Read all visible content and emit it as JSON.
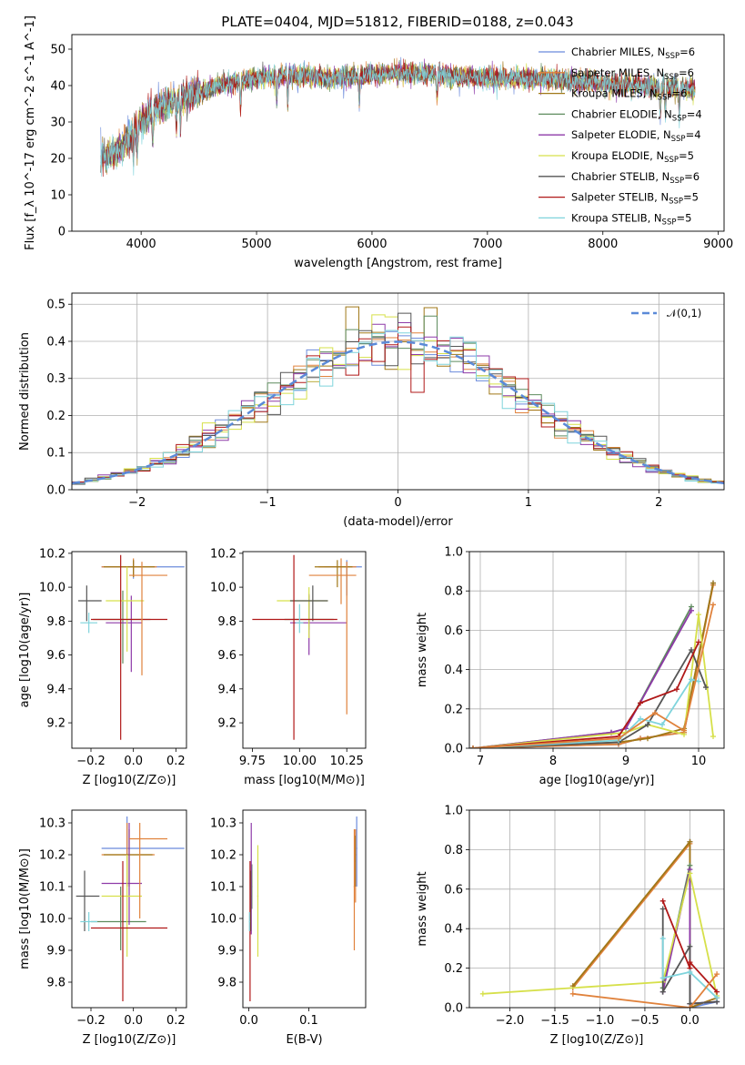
{
  "figure_title": "PLATE=0404, MJD=51812, FIBERID=0188, z=0.043",
  "series": [
    {
      "name": "Chabrier MILES, N_SSP=6",
      "color": "#6b8bdc"
    },
    {
      "name": "Salpeter MILES, N_SSP=6",
      "color": "#e0823c"
    },
    {
      "name": "Kroupa MILES, N_SSP=6",
      "color": "#a07818"
    },
    {
      "name": "Chabrier ELODIE, N_SSP=4",
      "color": "#5e8c5e"
    },
    {
      "name": "Salpeter ELODIE, N_SSP=4",
      "color": "#8e3aa8"
    },
    {
      "name": "Kroupa ELODIE, N_SSP=5",
      "color": "#d6e04a"
    },
    {
      "name": "Chabrier STELIB, N_SSP=6",
      "color": "#555555"
    },
    {
      "name": "Salpeter STELIB, N_SSP=5",
      "color": "#b01818"
    },
    {
      "name": "Kroupa STELIB, N_SSP=5",
      "color": "#7fd4dc"
    }
  ],
  "chart_data": [
    {
      "id": "spectrum",
      "type": "line",
      "title": "PLATE=0404, MJD=51812, FIBERID=0188, z=0.043",
      "xlabel": "wavelength [Angstrom, rest frame]",
      "ylabel": "Flux [f_λ 10^-17 erg cm^-2 s^-1 A^-1]",
      "xlim": [
        3400,
        9050
      ],
      "ylim": [
        0,
        54
      ],
      "xticks": [
        4000,
        5000,
        6000,
        7000,
        8000,
        9000
      ],
      "yticks": [
        0,
        10,
        20,
        30,
        40,
        50
      ],
      "continuum": {
        "x": [
          3650,
          3800,
          4000,
          4200,
          4500,
          4800,
          5000,
          5300,
          5600,
          6000,
          6300,
          6600,
          7000,
          7500,
          8000,
          8500,
          8800
        ],
        "y": [
          20,
          22,
          30,
          35,
          38,
          41,
          42,
          43,
          42,
          43,
          43.5,
          43,
          42,
          42,
          40.5,
          39.5,
          39
        ]
      },
      "legend_loc": "upper right"
    },
    {
      "id": "residuals",
      "type": "step",
      "xlabel": "(data-model)/error",
      "ylabel": "Normed distribution",
      "xlim": [
        -2.5,
        2.5
      ],
      "ylim": [
        0,
        0.53
      ],
      "xticks": [
        -2,
        -1,
        0,
        1,
        2
      ],
      "yticks": [
        0.0,
        0.1,
        0.2,
        0.3,
        0.4,
        0.5
      ],
      "reference": {
        "name": "𝒩(0,1)",
        "mu": 0,
        "sigma": 1,
        "color": "#5b8ad8"
      },
      "bin_width": 0.1,
      "grid": true
    },
    {
      "id": "age_vs_Z",
      "type": "errorbar",
      "xlabel": "Z [log10(Z/Z⊙)]",
      "ylabel": "age [log10(age/yr)]",
      "xlim": [
        -0.29,
        0.25
      ],
      "ylim": [
        9.05,
        10.21
      ],
      "xticks": [
        -0.2,
        0.0,
        0.2
      ],
      "yticks": [
        9.2,
        9.4,
        9.6,
        9.8,
        10.0,
        10.2
      ],
      "points": [
        {
          "series": 0,
          "x": 0.0,
          "y": 10.12,
          "xlo": -0.15,
          "xhi": 0.24,
          "ylo": 10.05,
          "yhi": 10.16
        },
        {
          "series": 1,
          "x": 0.0,
          "y": 10.12,
          "xlo": -0.15,
          "xhi": 0.11,
          "ylo": 10.06,
          "yhi": 10.17
        },
        {
          "series": 2,
          "x": 0.0,
          "y": 10.12,
          "xlo": -0.14,
          "xhi": 0.1,
          "ylo": 10.06,
          "yhi": 10.16
        },
        {
          "series": 3,
          "x": -0.05,
          "y": 9.81,
          "xlo": -0.19,
          "xhi": 0.08,
          "ylo": 9.55,
          "yhi": 9.98
        },
        {
          "series": 4,
          "x": -0.01,
          "y": 9.79,
          "xlo": -0.13,
          "xhi": 0.04,
          "ylo": 9.5,
          "yhi": 9.95
        },
        {
          "series": 5,
          "x": -0.03,
          "y": 9.92,
          "xlo": -0.13,
          "xhi": 0.05,
          "ylo": 9.62,
          "yhi": 10.12
        },
        {
          "series": 6,
          "x": -0.22,
          "y": 9.92,
          "xlo": -0.26,
          "xhi": -0.15,
          "ylo": 9.8,
          "yhi": 10.01
        },
        {
          "series": 7,
          "x": -0.06,
          "y": 9.81,
          "xlo": -0.2,
          "xhi": 0.16,
          "ylo": 9.1,
          "yhi": 10.19
        },
        {
          "series": 8,
          "x": -0.21,
          "y": 9.79,
          "xlo": -0.25,
          "xhi": -0.17,
          "ylo": 9.73,
          "yhi": 9.85
        },
        {
          "series": 1,
          "x": 0.04,
          "y": 10.07,
          "xlo": -0.02,
          "xhi": 0.16,
          "ylo": 9.48,
          "yhi": 10.15
        }
      ]
    },
    {
      "id": "age_vs_mass",
      "type": "errorbar",
      "xlabel": "mass [log10(M/M⊙)]",
      "ylabel": "",
      "xlim": [
        9.7,
        10.35
      ],
      "ylim": [
        9.05,
        10.21
      ],
      "xticks": [
        9.75,
        10.0,
        10.25
      ],
      "yticks": [
        9.2,
        9.4,
        9.6,
        9.8,
        10.0,
        10.2
      ],
      "points": [
        {
          "series": 0,
          "x": 10.25,
          "y": 10.12,
          "xlo": 10.13,
          "xhi": 10.33,
          "ylo": 9.95,
          "yhi": 10.16
        },
        {
          "series": 1,
          "x": 10.22,
          "y": 10.12,
          "xlo": 10.1,
          "xhi": 10.3,
          "ylo": 9.9,
          "yhi": 10.17
        },
        {
          "series": 2,
          "x": 10.2,
          "y": 10.12,
          "xlo": 10.08,
          "xhi": 10.28,
          "ylo": 10.0,
          "yhi": 10.16
        },
        {
          "series": 3,
          "x": 10.05,
          "y": 9.81,
          "xlo": 9.92,
          "xhi": 10.18,
          "ylo": 9.75,
          "yhi": 9.95
        },
        {
          "series": 4,
          "x": 10.05,
          "y": 9.79,
          "xlo": 9.95,
          "xhi": 10.25,
          "ylo": 9.6,
          "yhi": 9.96
        },
        {
          "series": 5,
          "x": 10.05,
          "y": 9.92,
          "xlo": 9.88,
          "xhi": 10.15,
          "ylo": 9.7,
          "yhi": 10.0
        },
        {
          "series": 6,
          "x": 10.07,
          "y": 9.92,
          "xlo": 9.95,
          "xhi": 10.15,
          "ylo": 9.8,
          "yhi": 10.01
        },
        {
          "series": 7,
          "x": 9.97,
          "y": 9.81,
          "xlo": 9.75,
          "xhi": 10.2,
          "ylo": 9.1,
          "yhi": 10.19
        },
        {
          "series": 8,
          "x": 10.0,
          "y": 9.79,
          "xlo": 9.98,
          "xhi": 10.02,
          "ylo": 9.73,
          "yhi": 9.9
        },
        {
          "series": 1,
          "x": 10.25,
          "y": 10.07,
          "xlo": 10.05,
          "xhi": 10.3,
          "ylo": 9.25,
          "yhi": 10.15
        }
      ]
    },
    {
      "id": "mass_weight_vs_age",
      "type": "line",
      "xlabel": "age [log10(age/yr)]",
      "ylabel": "mass weight",
      "xlim": [
        6.85,
        10.35
      ],
      "ylim": [
        0,
        1.0
      ],
      "xticks": [
        7,
        8,
        9,
        10
      ],
      "yticks": [
        0.0,
        0.2,
        0.4,
        0.6,
        0.8,
        1.0
      ],
      "series": [
        {
          "series": 0,
          "x": [
            6.9,
            8.9,
            9.2,
            9.8,
            10.2
          ],
          "y": [
            0,
            0.02,
            0.05,
            0.08,
            0.84
          ]
        },
        {
          "series": 1,
          "x": [
            6.9,
            8.9,
            9.2,
            9.8,
            10.2
          ],
          "y": [
            0,
            0.02,
            0.05,
            0.08,
            0.83
          ]
        },
        {
          "series": 2,
          "x": [
            6.9,
            8.9,
            9.3,
            9.8,
            10.2
          ],
          "y": [
            0,
            0.03,
            0.05,
            0.1,
            0.84
          ]
        },
        {
          "series": 3,
          "x": [
            6.9,
            8.8,
            9.0,
            9.9
          ],
          "y": [
            0,
            0.08,
            0.1,
            0.72
          ]
        },
        {
          "series": 4,
          "x": [
            6.9,
            8.8,
            9.0,
            9.9
          ],
          "y": [
            0,
            0.08,
            0.1,
            0.7
          ]
        },
        {
          "series": 5,
          "x": [
            6.9,
            9.0,
            9.3,
            9.8,
            10.0,
            10.2
          ],
          "y": [
            0,
            0.08,
            0.12,
            0.07,
            0.68,
            0.06
          ]
        },
        {
          "series": 6,
          "x": [
            6.9,
            8.9,
            9.3,
            9.9,
            10.1
          ],
          "y": [
            0,
            0.03,
            0.12,
            0.5,
            0.31
          ]
        },
        {
          "series": 7,
          "x": [
            6.9,
            8.9,
            9.2,
            9.7,
            10.0
          ],
          "y": [
            0,
            0.06,
            0.23,
            0.3,
            0.54
          ]
        },
        {
          "series": 8,
          "x": [
            6.9,
            8.9,
            9.2,
            9.5,
            9.9,
            10.0
          ],
          "y": [
            0,
            0.04,
            0.15,
            0.12,
            0.35,
            0.34
          ]
        },
        {
          "series": 1,
          "x": [
            6.9,
            8.9,
            9.4,
            9.8,
            10.2
          ],
          "y": [
            0,
            0.05,
            0.18,
            0.09,
            0.73
          ]
        }
      ]
    },
    {
      "id": "mass_vs_Z",
      "type": "errorbar",
      "xlabel": "Z [log10(Z/Z⊙)]",
      "ylabel": "mass [log10(M/M⊙)]",
      "xlim": [
        -0.29,
        0.25
      ],
      "ylim": [
        9.72,
        10.34
      ],
      "xticks": [
        -0.2,
        0.0,
        0.2
      ],
      "yticks": [
        9.8,
        9.9,
        10.0,
        10.1,
        10.2,
        10.3
      ],
      "points": [
        {
          "series": 0,
          "x": -0.03,
          "y": 10.22,
          "xlo": -0.15,
          "xhi": 0.24,
          "ylo": 10.1,
          "yhi": 10.32
        },
        {
          "series": 1,
          "x": -0.03,
          "y": 10.2,
          "xlo": -0.15,
          "xhi": 0.1,
          "ylo": 10.1,
          "yhi": 10.3
        },
        {
          "series": 2,
          "x": -0.02,
          "y": 10.2,
          "xlo": -0.14,
          "xhi": 0.09,
          "ylo": 10.1,
          "yhi": 10.28
        },
        {
          "series": 3,
          "x": -0.06,
          "y": 9.99,
          "xlo": -0.2,
          "xhi": 0.06,
          "ylo": 9.9,
          "yhi": 10.1
        },
        {
          "series": 4,
          "x": -0.02,
          "y": 10.11,
          "xlo": -0.15,
          "xhi": 0.04,
          "ylo": 9.98,
          "yhi": 10.3
        },
        {
          "series": 5,
          "x": -0.03,
          "y": 10.07,
          "xlo": -0.15,
          "xhi": 0.04,
          "ylo": 9.88,
          "yhi": 10.2
        },
        {
          "series": 6,
          "x": -0.23,
          "y": 10.07,
          "xlo": -0.27,
          "xhi": -0.16,
          "ylo": 9.96,
          "yhi": 10.15
        },
        {
          "series": 7,
          "x": -0.05,
          "y": 9.97,
          "xlo": -0.2,
          "xhi": 0.16,
          "ylo": 9.74,
          "yhi": 10.18
        },
        {
          "series": 8,
          "x": -0.21,
          "y": 9.99,
          "xlo": -0.25,
          "xhi": -0.17,
          "ylo": 9.96,
          "yhi": 10.02
        },
        {
          "series": 1,
          "x": 0.03,
          "y": 10.25,
          "xlo": -0.02,
          "xhi": 0.16,
          "ylo": 10.0,
          "yhi": 10.3
        }
      ]
    },
    {
      "id": "mass_vs_ebv",
      "type": "errorbar",
      "xlabel": "E(B-V)",
      "ylabel": "",
      "xlim": [
        -0.01,
        0.195
      ],
      "ylim": [
        9.72,
        10.34
      ],
      "xticks": [
        0.0,
        0.1
      ],
      "yticks": [
        9.8,
        9.9,
        10.0,
        10.1,
        10.2,
        10.3
      ],
      "points": [
        {
          "series": 0,
          "x": 0.18,
          "y": 10.22,
          "xlo": 0.179,
          "xhi": 0.181,
          "ylo": 10.1,
          "yhi": 10.32
        },
        {
          "series": 1,
          "x": 0.178,
          "y": 10.2,
          "xlo": 0.177,
          "xhi": 0.179,
          "ylo": 10.05,
          "yhi": 10.28
        },
        {
          "series": 2,
          "x": 0.177,
          "y": 10.18,
          "xlo": 0.176,
          "xhi": 0.178,
          "ylo": 10.1,
          "yhi": 10.26
        },
        {
          "series": 3,
          "x": 0.005,
          "y": 10.1,
          "xlo": 0.004,
          "xhi": 0.006,
          "ylo": 10.03,
          "yhi": 10.17
        },
        {
          "series": 4,
          "x": 0.004,
          "y": 10.11,
          "xlo": 0.003,
          "xhi": 0.005,
          "ylo": 9.95,
          "yhi": 10.3
        },
        {
          "series": 5,
          "x": 0.015,
          "y": 10.07,
          "xlo": 0.014,
          "xhi": 0.016,
          "ylo": 9.88,
          "yhi": 10.23
        },
        {
          "series": 6,
          "x": 0.003,
          "y": 10.07,
          "xlo": 0.002,
          "xhi": 0.004,
          "ylo": 9.96,
          "yhi": 10.15
        },
        {
          "series": 7,
          "x": 0.002,
          "y": 9.97,
          "xlo": 0.001,
          "xhi": 0.003,
          "ylo": 9.74,
          "yhi": 10.18
        },
        {
          "series": 8,
          "x": 0.001,
          "y": 9.99,
          "xlo": 0.0,
          "xhi": 0.002,
          "ylo": 9.96,
          "yhi": 10.02
        },
        {
          "series": 1,
          "x": 0.176,
          "y": 10.1,
          "xlo": 0.175,
          "xhi": 0.177,
          "ylo": 9.9,
          "yhi": 10.28
        }
      ]
    },
    {
      "id": "mass_weight_vs_Z",
      "type": "line",
      "xlabel": "Z [log10(Z/Z⊙)]",
      "ylabel": "mass weight",
      "xlim": [
        -2.45,
        0.38
      ],
      "ylim": [
        0,
        1.0
      ],
      "xticks": [
        -2.0,
        -1.5,
        -1.0,
        -0.5,
        0.0
      ],
      "yticks": [
        0.0,
        0.2,
        0.4,
        0.6,
        0.8,
        1.0
      ],
      "series": [
        {
          "series": 0,
          "x": [
            -1.3,
            0.0,
            0.0,
            0.3
          ],
          "y": [
            0.1,
            0.84,
            0.0,
            0.03
          ]
        },
        {
          "series": 1,
          "x": [
            -1.3,
            0.0,
            0.0,
            0.3
          ],
          "y": [
            0.1,
            0.83,
            0.0,
            0.05
          ]
        },
        {
          "series": 2,
          "x": [
            -1.3,
            0.0,
            0.0,
            0.3
          ],
          "y": [
            0.11,
            0.84,
            0.0,
            0.05
          ]
        },
        {
          "series": 3,
          "x": [
            -0.3,
            0.0,
            0.0,
            0.3
          ],
          "y": [
            0.1,
            0.72,
            0.02,
            0.03
          ]
        },
        {
          "series": 4,
          "x": [
            -0.3,
            0.0,
            0.0,
            0.3
          ],
          "y": [
            0.08,
            0.7,
            0.02,
            0.03
          ]
        },
        {
          "series": 5,
          "x": [
            -2.3,
            -0.3,
            0.0,
            0.3
          ],
          "y": [
            0.07,
            0.13,
            0.68,
            0.06
          ]
        },
        {
          "series": 6,
          "x": [
            -0.3,
            -0.3,
            0.0,
            0.0,
            0.3
          ],
          "y": [
            0.5,
            0.08,
            0.31,
            0.02,
            0.03
          ]
        },
        {
          "series": 7,
          "x": [
            -0.3,
            0.0,
            0.0,
            0.3
          ],
          "y": [
            0.54,
            0.2,
            0.23,
            0.08
          ]
        },
        {
          "series": 8,
          "x": [
            -0.3,
            -0.3,
            0.0,
            0.3
          ],
          "y": [
            0.35,
            0.15,
            0.18,
            0.05
          ]
        },
        {
          "series": 1,
          "x": [
            -1.3,
            0.0,
            0.3
          ],
          "y": [
            0.07,
            0.0,
            0.17
          ]
        }
      ]
    }
  ]
}
